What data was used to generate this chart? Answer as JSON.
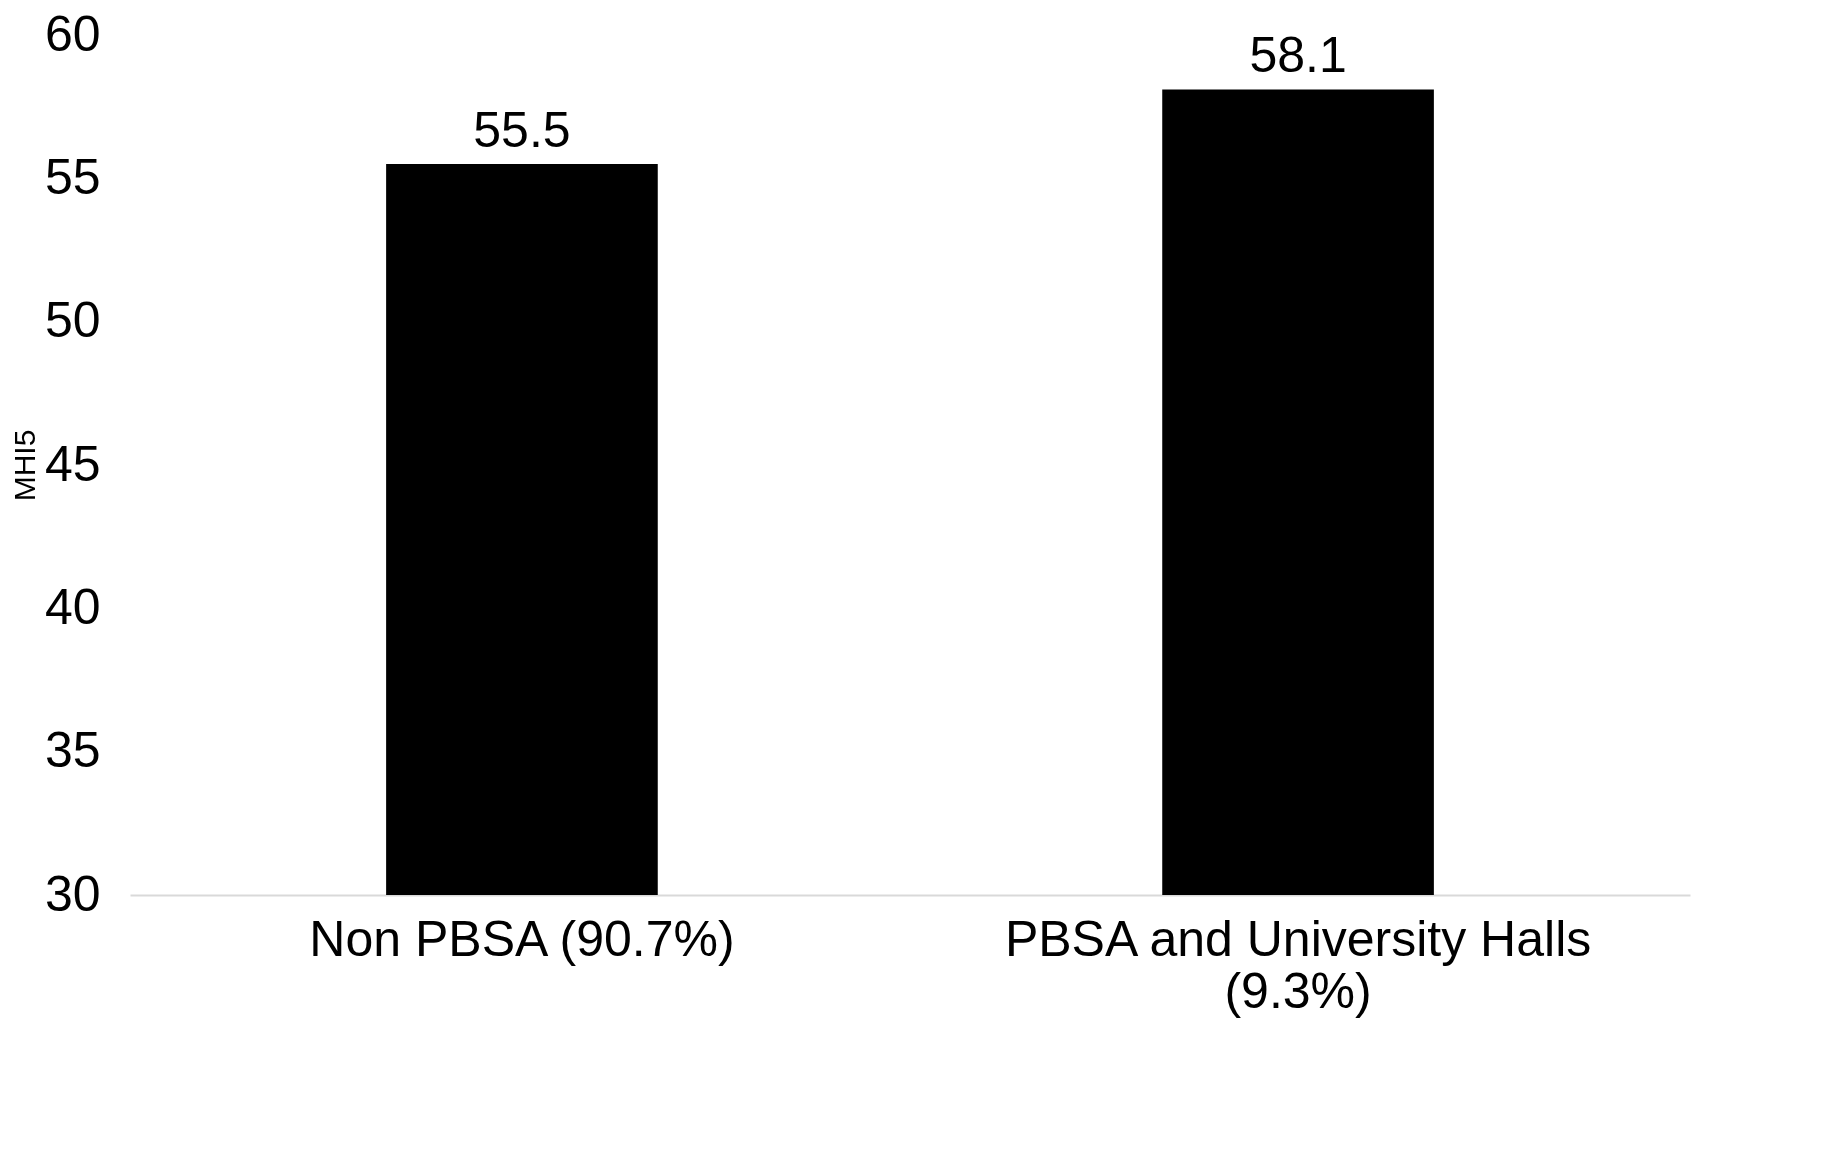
{
  "chart_data": {
    "type": "bar",
    "ylabel": "MHI5",
    "categories": [
      "Non PBSA (90.7%)",
      "PBSA and University Halls (9.3%)"
    ],
    "values": [
      55.5,
      58.1
    ],
    "color": "#000000",
    "ylim": [
      30,
      60
    ],
    "yticks": [
      30,
      35,
      40,
      45,
      50,
      55,
      60
    ],
    "grid": false,
    "data_labels": true
  }
}
